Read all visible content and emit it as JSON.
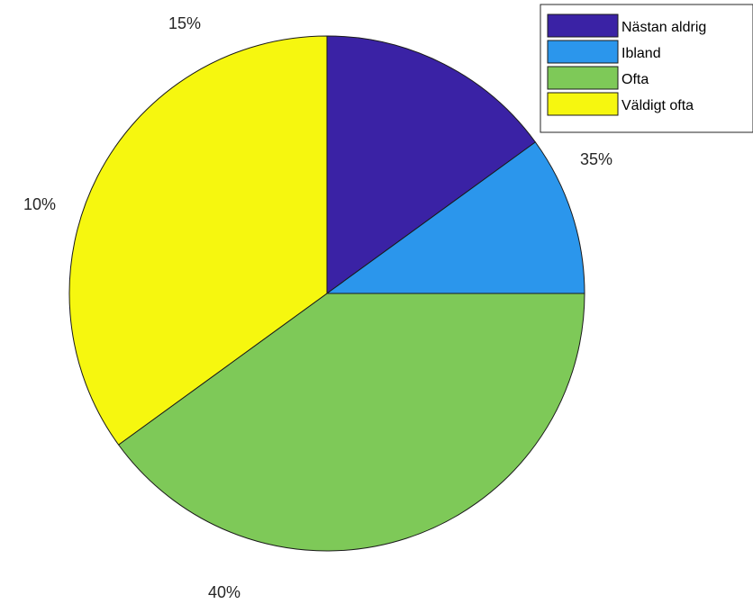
{
  "chart_data": {
    "type": "pie",
    "slices": [
      {
        "label": "Nästan aldrig",
        "value": 15,
        "pct_label": "15%",
        "color": "#3a22a5"
      },
      {
        "label": "Ibland",
        "value": 10,
        "pct_label": "10%",
        "color": "#2b96ec"
      },
      {
        "label": "Ofta",
        "value": 40,
        "pct_label": "40%",
        "color": "#7ec958"
      },
      {
        "label": "Väldigt ofta",
        "value": 35,
        "pct_label": "35%",
        "color": "#f6f70f"
      }
    ],
    "legend": {
      "position": "top-right"
    },
    "start": "top",
    "direction": "clockwise"
  }
}
